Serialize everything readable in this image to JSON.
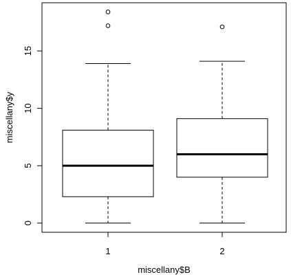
{
  "chart_data": {
    "type": "boxplot",
    "xlabel": "miscellany$B",
    "ylabel": "miscellany$y",
    "ylim": [
      -0.8,
      19.2
    ],
    "yticks": [
      0,
      5,
      10,
      15
    ],
    "ytick_labels": [
      "0",
      "5",
      "10",
      "15"
    ],
    "categories": [
      "1",
      "2"
    ],
    "series": [
      {
        "whisker_low": 0,
        "q1": 2.3,
        "median": 5.0,
        "q3": 8.1,
        "whisker_high": 13.9,
        "outliers": [
          17.2,
          18.4
        ]
      },
      {
        "whisker_low": 0,
        "q1": 4.0,
        "median": 6.0,
        "q3": 9.1,
        "whisker_high": 14.1,
        "outliers": [
          17.1
        ]
      }
    ],
    "grid": false,
    "legend": "none"
  }
}
